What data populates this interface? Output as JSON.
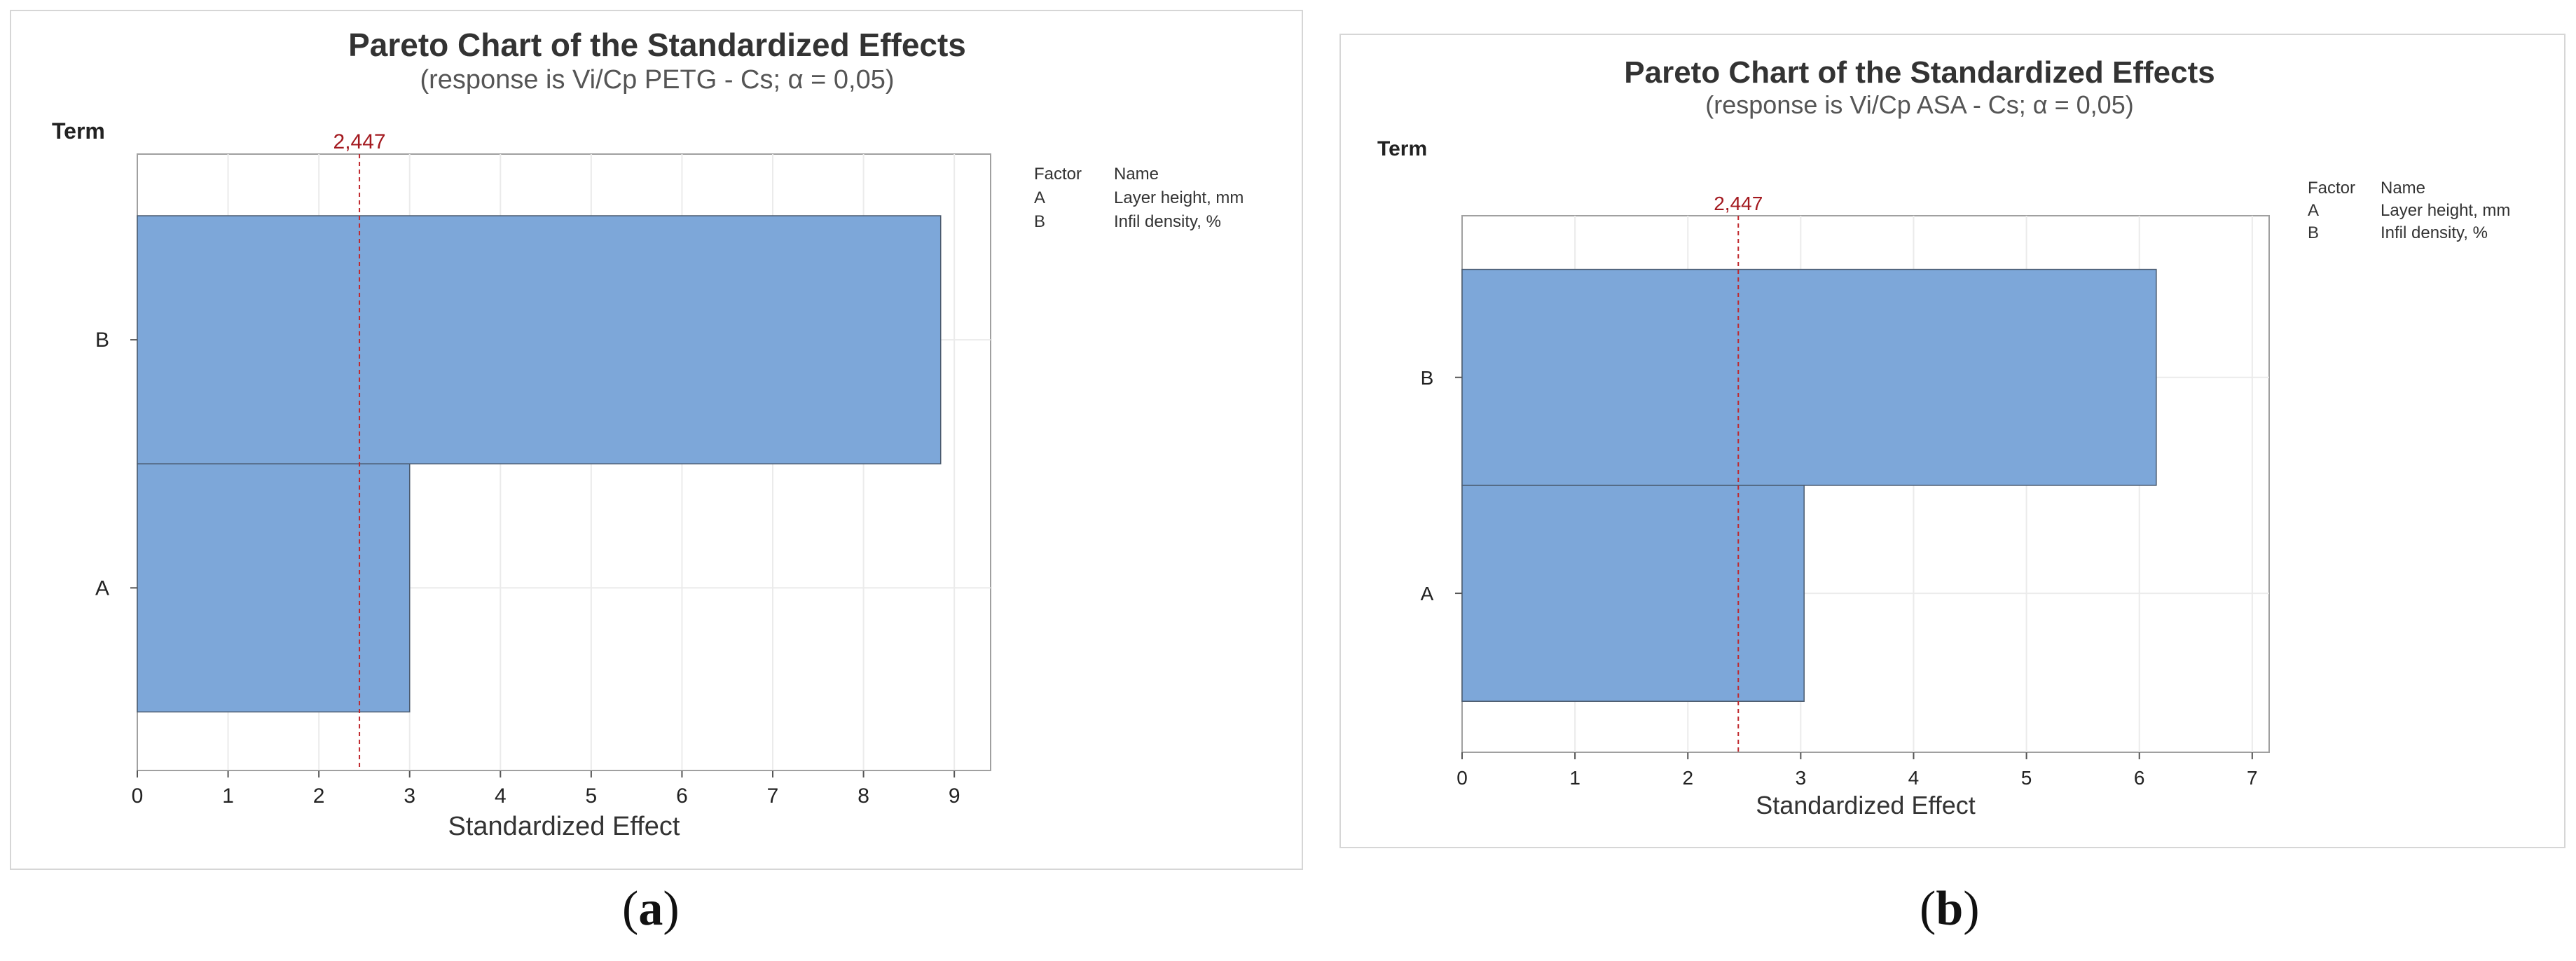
{
  "chart_data": [
    {
      "type": "bar",
      "orientation": "horizontal",
      "title": "Pareto Chart of the Standardized Effects",
      "subtitle": "(response is Vi/Cp PETG - Cs; α = 0,05)",
      "term_label": "Term",
      "xlabel": "Standardized Effect",
      "categories": [
        "B",
        "A"
      ],
      "values": [
        8.85,
        3.0
      ],
      "reference_line": {
        "value": 2.447,
        "label": "2,447"
      },
      "xlim": [
        0,
        9.4
      ],
      "xticks": [
        "0",
        "1",
        "2",
        "3",
        "4",
        "5",
        "6",
        "7",
        "8",
        "9"
      ],
      "grid": true,
      "bar_color": "#7da7d9",
      "line_color": "#c0282d",
      "legend": {
        "headers": [
          "Factor",
          "Name"
        ],
        "rows": [
          [
            "A",
            "Layer height, mm"
          ],
          [
            "B",
            "Infil density, %"
          ]
        ],
        "placement": "right"
      }
    },
    {
      "type": "bar",
      "orientation": "horizontal",
      "title": "Pareto Chart of the Standardized Effects",
      "subtitle": "(response is Vi/Cp ASA - Cs; α = 0,05)",
      "term_label": "Term",
      "xlabel": "Standardized Effect",
      "categories": [
        "B",
        "A"
      ],
      "values": [
        6.15,
        3.03
      ],
      "reference_line": {
        "value": 2.447,
        "label": "2,447"
      },
      "xlim": [
        0,
        7.15
      ],
      "xticks": [
        "0",
        "1",
        "2",
        "3",
        "4",
        "5",
        "6",
        "7"
      ],
      "grid": true,
      "bar_color": "#7da7d9",
      "line_color": "#c0282d",
      "legend": {
        "headers": [
          "Factor",
          "Name"
        ],
        "rows": [
          [
            "A",
            "Layer height, mm"
          ],
          [
            "B",
            "Infil density, %"
          ]
        ],
        "placement": "right"
      }
    }
  ],
  "captions": {
    "a": "(a)",
    "b": "(b)"
  },
  "caption_letters": {
    "a": "a",
    "b": "b"
  }
}
